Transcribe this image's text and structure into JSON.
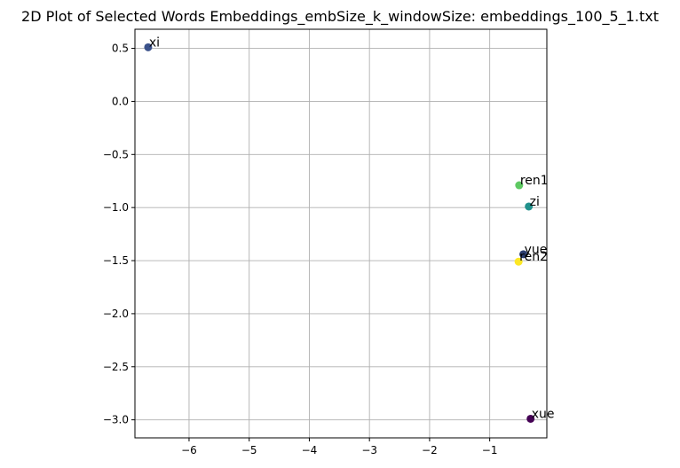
{
  "chart_data": {
    "type": "scatter",
    "title": "2D Plot of Selected Words Embeddings_embSize_k_windowSize: embeddings_100_5_1.txt",
    "xlabel": "",
    "ylabel": "",
    "xlim": [
      -6.9,
      -0.05
    ],
    "ylim": [
      -3.17,
      0.68
    ],
    "grid": true,
    "x_ticks": [
      -6,
      -5,
      -4,
      -3,
      -2,
      -1
    ],
    "x_tick_labels": [
      "−6",
      "−5",
      "−4",
      "−3",
      "−2",
      "−1"
    ],
    "y_ticks": [
      0.5,
      0.0,
      -0.5,
      -1.0,
      -1.5,
      -2.0,
      -2.5,
      -3.0
    ],
    "y_tick_labels": [
      "0.5",
      "0.0",
      "−0.5",
      "−1.0",
      "−1.5",
      "−2.0",
      "−2.5",
      "−3.0"
    ],
    "points": [
      {
        "label": "xi",
        "x": -6.68,
        "y": 0.51,
        "color": "#3b528b"
      },
      {
        "label": "ren1",
        "x": -0.51,
        "y": -0.79,
        "color": "#5ec962"
      },
      {
        "label": "zi",
        "x": -0.35,
        "y": -0.99,
        "color": "#21918c"
      },
      {
        "label": "yue",
        "x": -0.44,
        "y": -1.44,
        "color": "#2c3e70"
      },
      {
        "label": "ren2",
        "x": -0.52,
        "y": -1.51,
        "color": "#fde725"
      },
      {
        "label": "xue",
        "x": -0.32,
        "y": -2.99,
        "color": "#440154"
      }
    ]
  }
}
